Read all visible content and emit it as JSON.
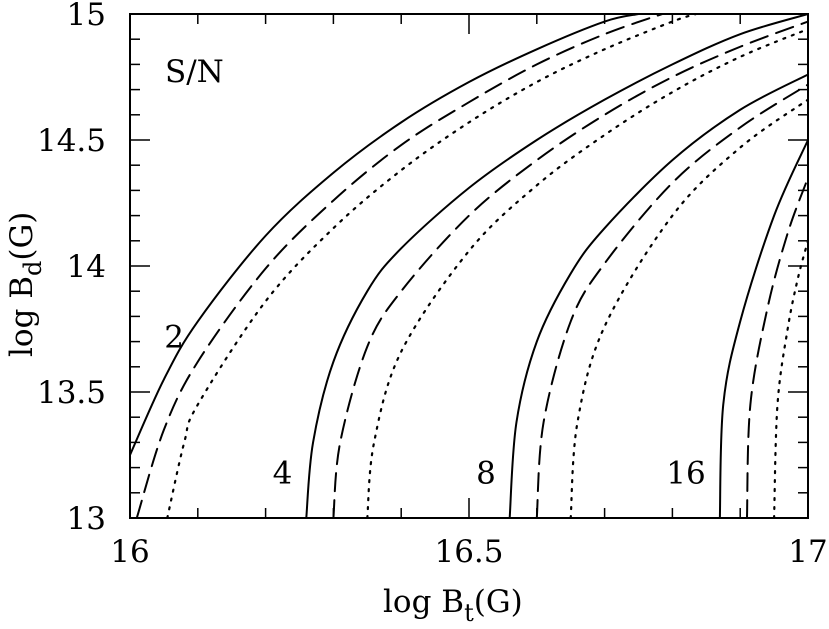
{
  "chart_data": {
    "type": "line",
    "title": "",
    "xlabel": {
      "main": "log  B",
      "sub": "t",
      "unit": "(G)"
    },
    "ylabel": {
      "main": "log  B",
      "sub": "d",
      "unit": "(G)"
    },
    "xlim": [
      16,
      17
    ],
    "ylim": [
      13,
      15
    ],
    "x_ticks": [
      {
        "value": 16,
        "label": "16"
      },
      {
        "value": 16.5,
        "label": "16.5"
      },
      {
        "value": 17,
        "label": "17"
      }
    ],
    "y_ticks": [
      {
        "value": 13,
        "label": "13"
      },
      {
        "value": 13.5,
        "label": "13.5"
      },
      {
        "value": 14,
        "label": "14"
      },
      {
        "value": 14.5,
        "label": "14.5"
      },
      {
        "value": 15,
        "label": "15"
      }
    ],
    "x_minor_step": 0.1,
    "y_minor_step": 0.1,
    "grid": false,
    "legend_title": "S/N",
    "annotations": [
      {
        "text": "2",
        "x": 16.065,
        "y": 13.72
      },
      {
        "text": "4",
        "x": 16.225,
        "y": 13.18
      },
      {
        "text": "8",
        "x": 16.525,
        "y": 13.18
      },
      {
        "text": "16",
        "x": 16.82,
        "y": 13.18
      }
    ],
    "series": [
      {
        "group": "2",
        "style": "solid",
        "x": [
          16.0,
          16.05,
          16.1,
          16.2,
          16.3,
          16.4,
          16.5,
          16.6,
          16.7,
          16.75
        ],
        "y": [
          13.25,
          13.55,
          13.78,
          14.12,
          14.37,
          14.57,
          14.73,
          14.86,
          14.97,
          15.0
        ]
      },
      {
        "group": "2",
        "style": "dashed",
        "x": [
          16.01,
          16.05,
          16.1,
          16.2,
          16.3,
          16.4,
          16.5,
          16.6,
          16.7,
          16.785
        ],
        "y": [
          13.0,
          13.35,
          13.62,
          13.99,
          14.26,
          14.48,
          14.65,
          14.8,
          14.92,
          15.0
        ]
      },
      {
        "group": "2",
        "style": "dotted",
        "x": [
          16.055,
          16.08,
          16.1,
          16.2,
          16.3,
          16.4,
          16.5,
          16.6,
          16.7,
          16.8,
          16.835
        ],
        "y": [
          13.0,
          13.3,
          13.45,
          13.86,
          14.15,
          14.38,
          14.57,
          14.73,
          14.86,
          14.97,
          15.0
        ]
      },
      {
        "group": "4",
        "style": "solid",
        "x": [
          16.26,
          16.27,
          16.3,
          16.35,
          16.4,
          16.5,
          16.6,
          16.7,
          16.8,
          16.9,
          17.0
        ],
        "y": [
          13.0,
          13.3,
          13.62,
          13.9,
          14.07,
          14.31,
          14.5,
          14.66,
          14.8,
          14.92,
          15.0
        ]
      },
      {
        "group": "4",
        "style": "dashed",
        "x": [
          16.3,
          16.31,
          16.35,
          16.4,
          16.5,
          16.6,
          16.7,
          16.8,
          16.9,
          17.0
        ],
        "y": [
          13.0,
          13.3,
          13.68,
          13.9,
          14.2,
          14.42,
          14.6,
          14.75,
          14.87,
          14.97
        ]
      },
      {
        "group": "4",
        "style": "dotted",
        "x": [
          16.35,
          16.36,
          16.4,
          16.5,
          16.6,
          16.7,
          16.8,
          16.9,
          17.0
        ],
        "y": [
          13.0,
          13.3,
          13.66,
          14.06,
          14.32,
          14.52,
          14.69,
          14.83,
          14.94
        ]
      },
      {
        "group": "8",
        "style": "solid",
        "x": [
          16.56,
          16.57,
          16.6,
          16.65,
          16.7,
          16.8,
          16.9,
          17.0
        ],
        "y": [
          13.0,
          13.38,
          13.7,
          13.97,
          14.15,
          14.42,
          14.62,
          14.76
        ]
      },
      {
        "group": "8",
        "style": "dashed",
        "x": [
          16.6,
          16.61,
          16.65,
          16.7,
          16.8,
          16.9,
          17.0
        ],
        "y": [
          13.0,
          13.38,
          13.78,
          14.01,
          14.33,
          14.55,
          14.72
        ]
      },
      {
        "group": "8",
        "style": "dotted",
        "x": [
          16.65,
          16.66,
          16.7,
          16.8,
          16.9,
          17.0
        ],
        "y": [
          13.0,
          13.38,
          13.76,
          14.2,
          14.47,
          14.66
        ]
      },
      {
        "group": "16",
        "style": "solid",
        "x": [
          16.87,
          16.875,
          16.9,
          16.95,
          17.0
        ],
        "y": [
          13.0,
          13.45,
          13.78,
          14.2,
          14.5
        ]
      },
      {
        "group": "16",
        "style": "dashed",
        "x": [
          16.91,
          16.915,
          16.94,
          16.97,
          17.0
        ],
        "y": [
          13.0,
          13.45,
          13.83,
          14.13,
          14.35
        ]
      },
      {
        "group": "16",
        "style": "dotted",
        "x": [
          16.95,
          16.955,
          16.97,
          16.985,
          17.0
        ],
        "y": [
          13.0,
          13.45,
          13.75,
          13.95,
          14.1
        ]
      }
    ]
  }
}
